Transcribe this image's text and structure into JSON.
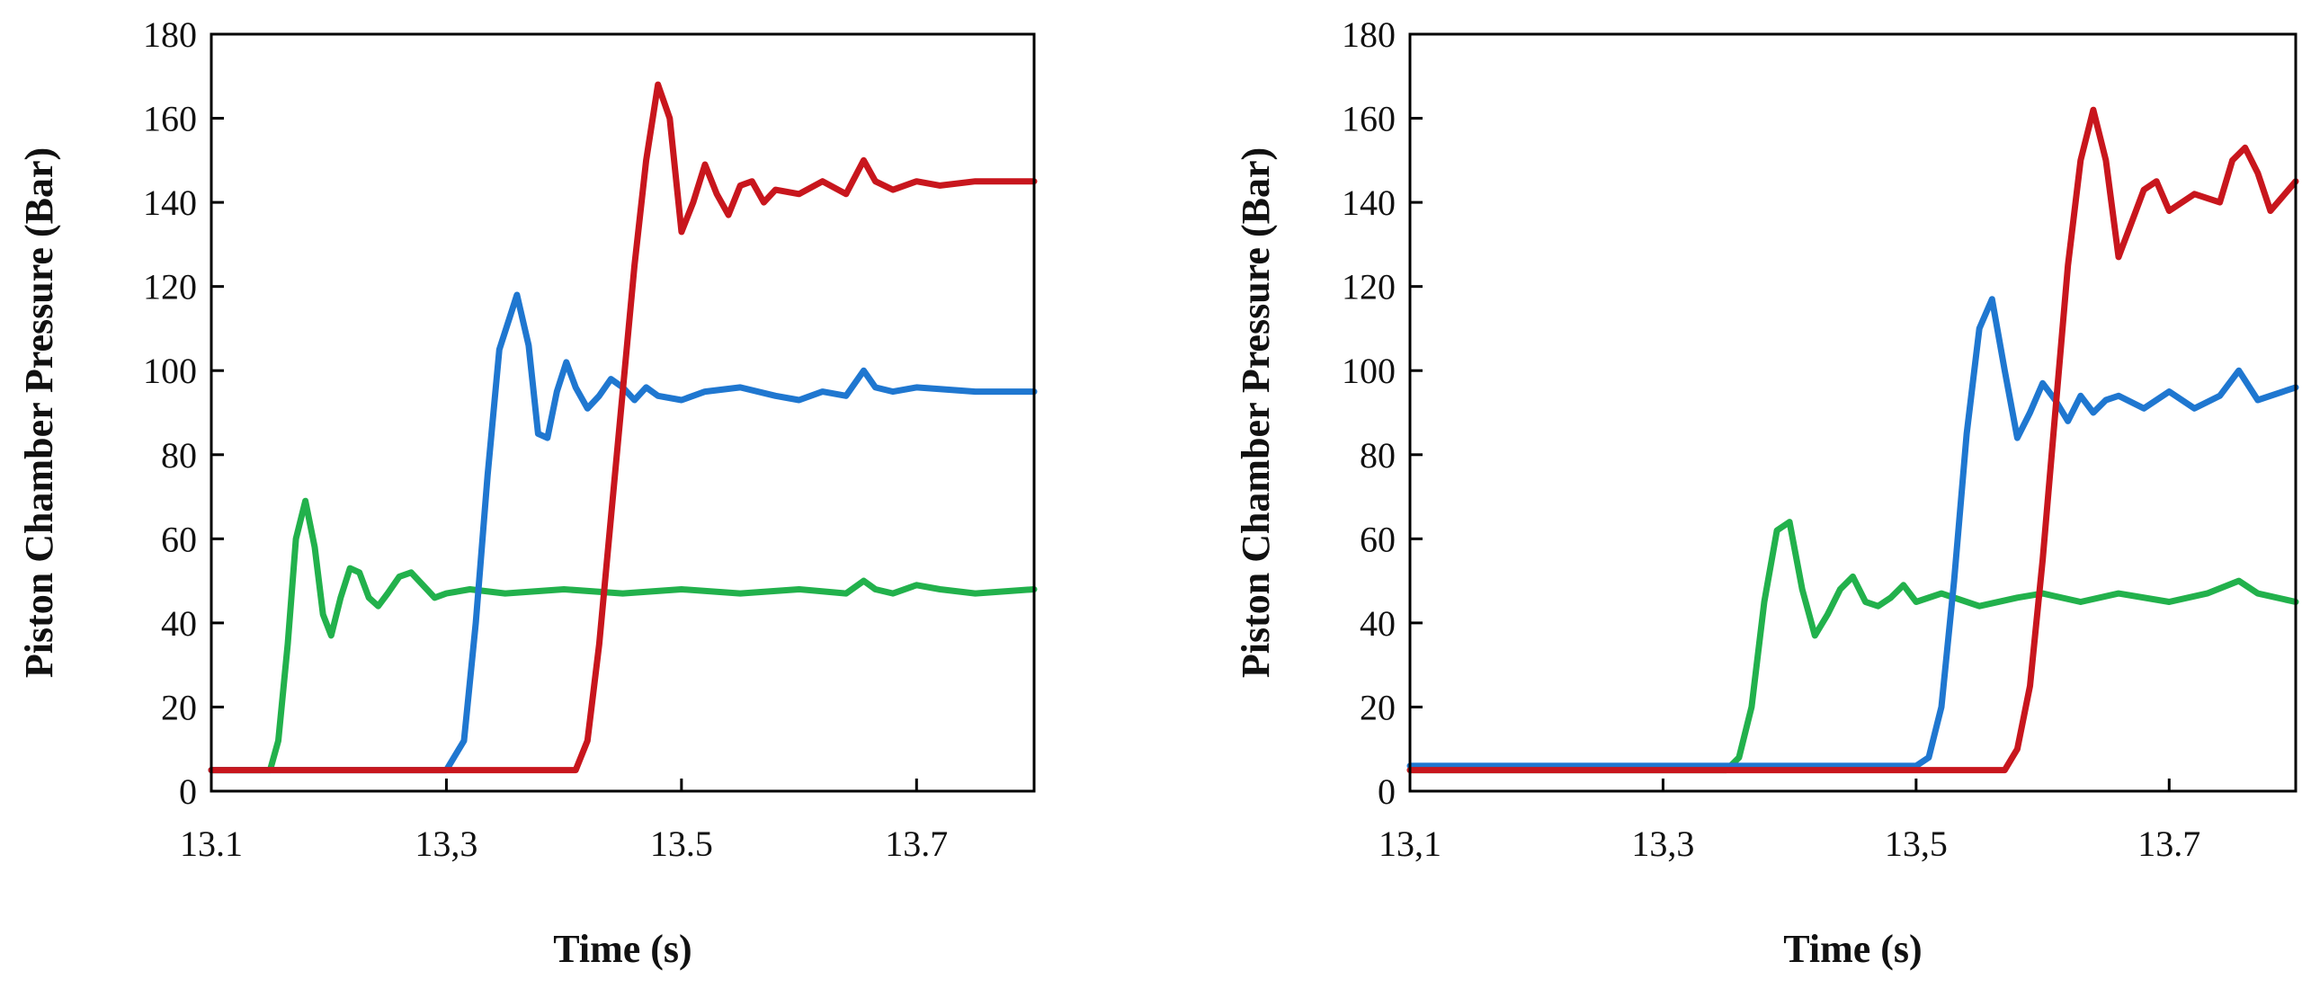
{
  "chart_data": [
    {
      "type": "line",
      "title": "",
      "xlabel": "Time (s)",
      "ylabel": "Piston Chamber Pressure (Bar)",
      "xlim": [
        13.1,
        13.8
      ],
      "ylim": [
        0,
        180
      ],
      "xticks": [
        "13.1",
        "13,3",
        "13.5",
        "13.7"
      ],
      "xtick_values": [
        13.1,
        13.3,
        13.5,
        13.7
      ],
      "yticks": [
        "0",
        "20",
        "40",
        "60",
        "80",
        "100",
        "120",
        "140",
        "160",
        "180"
      ],
      "ytick_values": [
        0,
        20,
        40,
        60,
        80,
        100,
        120,
        140,
        160,
        180
      ],
      "grid": false,
      "series": [
        {
          "name": "green",
          "color": "#22b14c",
          "x": [
            13.1,
            13.15,
            13.157,
            13.165,
            13.172,
            13.18,
            13.188,
            13.195,
            13.202,
            13.21,
            13.218,
            13.226,
            13.234,
            13.242,
            13.25,
            13.26,
            13.27,
            13.28,
            13.29,
            13.3,
            13.32,
            13.35,
            13.4,
            13.45,
            13.5,
            13.55,
            13.6,
            13.64,
            13.655,
            13.665,
            13.68,
            13.7,
            13.72,
            13.75,
            13.8
          ],
          "y": [
            5,
            5,
            12,
            35,
            60,
            69,
            58,
            42,
            37,
            46,
            53,
            52,
            46,
            44,
            47,
            51,
            52,
            49,
            46,
            47,
            48,
            47,
            48,
            47,
            48,
            47,
            48,
            47,
            50,
            48,
            47,
            49,
            48,
            47,
            48
          ]
        },
        {
          "name": "blue",
          "color": "#1f77d0",
          "x": [
            13.1,
            13.3,
            13.315,
            13.325,
            13.335,
            13.345,
            13.36,
            13.37,
            13.378,
            13.386,
            13.394,
            13.402,
            13.41,
            13.42,
            13.43,
            13.44,
            13.45,
            13.46,
            13.47,
            13.48,
            13.5,
            13.52,
            13.55,
            13.58,
            13.6,
            13.62,
            13.64,
            13.655,
            13.665,
            13.68,
            13.7,
            13.75,
            13.8
          ],
          "y": [
            5,
            5,
            12,
            40,
            75,
            105,
            118,
            106,
            85,
            84,
            95,
            102,
            96,
            91,
            94,
            98,
            96,
            93,
            96,
            94,
            93,
            95,
            96,
            94,
            93,
            95,
            94,
            100,
            96,
            95,
            96,
            95,
            95
          ]
        },
        {
          "name": "red",
          "color": "#c8161d",
          "x": [
            13.1,
            13.41,
            13.42,
            13.43,
            13.44,
            13.45,
            13.46,
            13.47,
            13.48,
            13.49,
            13.5,
            13.51,
            13.52,
            13.53,
            13.54,
            13.55,
            13.56,
            13.57,
            13.58,
            13.6,
            13.62,
            13.64,
            13.655,
            13.665,
            13.68,
            13.7,
            13.72,
            13.75,
            13.8
          ],
          "y": [
            5,
            5,
            12,
            35,
            65,
            95,
            125,
            150,
            168,
            160,
            133,
            140,
            149,
            142,
            137,
            144,
            145,
            140,
            143,
            142,
            145,
            142,
            150,
            145,
            143,
            145,
            144,
            145,
            145
          ]
        }
      ]
    },
    {
      "type": "line",
      "title": "",
      "xlabel": "Time (s)",
      "ylabel": "Piston Chamber Pressure (Bar)",
      "xlim": [
        13.1,
        13.8
      ],
      "ylim": [
        0,
        180
      ],
      "xticks": [
        "13,1",
        "13,3",
        "13,5",
        "13.7"
      ],
      "xtick_values": [
        13.1,
        13.3,
        13.5,
        13.7
      ],
      "yticks": [
        "0",
        "20",
        "40",
        "60",
        "80",
        "100",
        "120",
        "140",
        "160",
        "180"
      ],
      "ytick_values": [
        0,
        20,
        40,
        60,
        80,
        100,
        120,
        140,
        160,
        180
      ],
      "grid": false,
      "series": [
        {
          "name": "green",
          "color": "#22b14c",
          "x": [
            13.1,
            13.35,
            13.36,
            13.37,
            13.38,
            13.39,
            13.4,
            13.41,
            13.42,
            13.43,
            13.44,
            13.45,
            13.46,
            13.47,
            13.48,
            13.49,
            13.5,
            13.52,
            13.55,
            13.58,
            13.6,
            13.63,
            13.66,
            13.7,
            13.73,
            13.755,
            13.77,
            13.8
          ],
          "y": [
            5,
            5,
            8,
            20,
            45,
            62,
            64,
            48,
            37,
            42,
            48,
            51,
            45,
            44,
            46,
            49,
            45,
            47,
            44,
            46,
            47,
            45,
            47,
            45,
            47,
            50,
            47,
            45
          ]
        },
        {
          "name": "blue",
          "color": "#1f77d0",
          "x": [
            13.1,
            13.5,
            13.51,
            13.52,
            13.53,
            13.54,
            13.55,
            13.56,
            13.57,
            13.58,
            13.59,
            13.6,
            13.61,
            13.62,
            13.63,
            13.64,
            13.65,
            13.66,
            13.68,
            13.7,
            13.72,
            13.74,
            13.755,
            13.77,
            13.8
          ],
          "y": [
            6,
            6,
            8,
            20,
            50,
            85,
            110,
            117,
            100,
            84,
            90,
            97,
            93,
            88,
            94,
            90,
            93,
            94,
            91,
            95,
            91,
            94,
            100,
            93,
            96
          ]
        },
        {
          "name": "red",
          "color": "#c8161d",
          "x": [
            13.1,
            13.57,
            13.58,
            13.59,
            13.6,
            13.61,
            13.62,
            13.63,
            13.64,
            13.65,
            13.66,
            13.67,
            13.68,
            13.69,
            13.7,
            13.72,
            13.74,
            13.75,
            13.76,
            13.77,
            13.78,
            13.8
          ],
          "y": [
            5,
            5,
            10,
            25,
            55,
            90,
            125,
            150,
            162,
            150,
            127,
            135,
            143,
            145,
            138,
            142,
            140,
            150,
            153,
            147,
            138,
            145
          ]
        }
      ]
    }
  ]
}
